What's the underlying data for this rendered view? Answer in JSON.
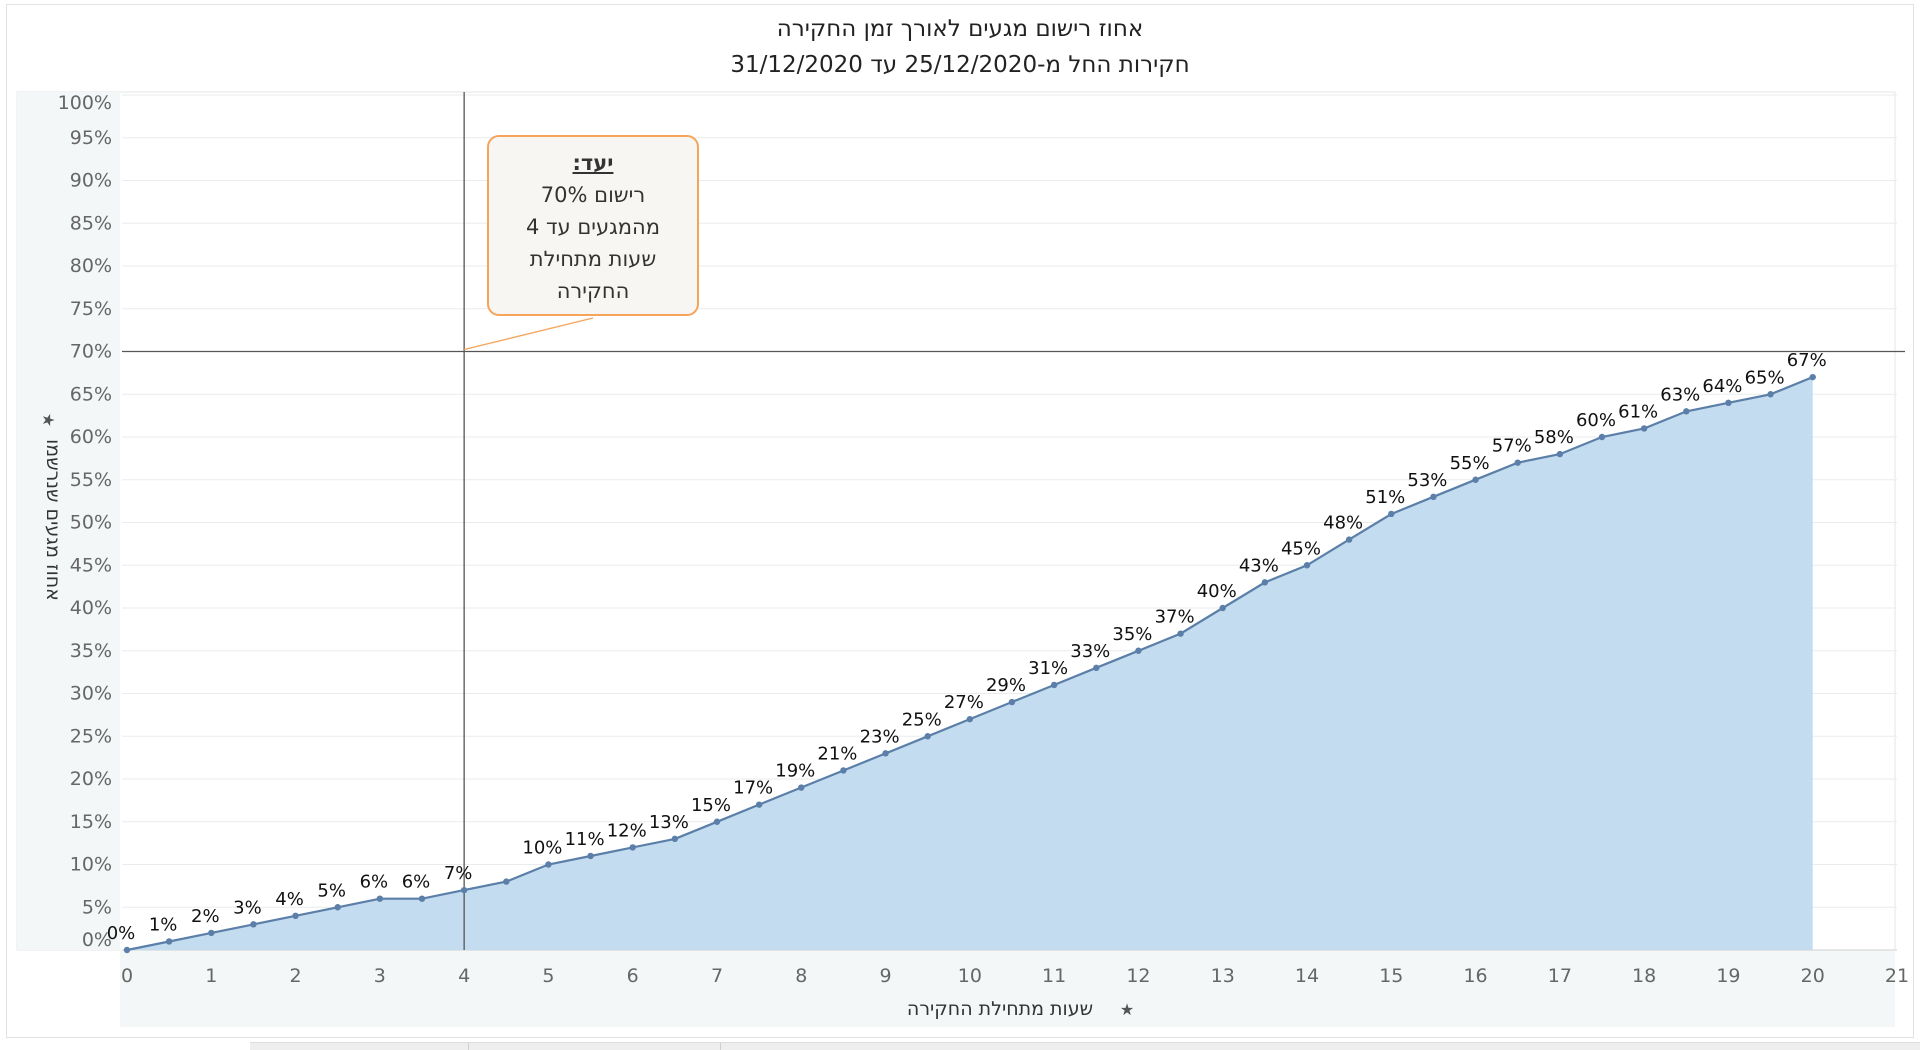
{
  "title": "אחוז רישום מגעים לאורך זמן החקירה",
  "subtitle": "חקירות החל מ-25/12/2020 עד 31/12/2020",
  "annotation": {
    "title": "יעד:",
    "lines": [
      "רישום 70%",
      "מהמגעים עד 4",
      "שעות מתחילת",
      "החקירה"
    ]
  },
  "colors": {
    "area_fill": "#c4dcef",
    "line": "#5b7fa8",
    "reference_line": "#555555",
    "callout_border": "#f5a45a",
    "axis_panel": "#f3f7f8"
  },
  "icons": {
    "axis_label_icon": "pin-icon"
  },
  "chart_data": {
    "type": "area",
    "xlabel": "שעות מתחילת החקירה",
    "ylabel": "אחוז מגעים שנרשמו",
    "xlim": [
      0,
      21
    ],
    "ylim": [
      0,
      100
    ],
    "x_ticks": [
      0,
      1,
      2,
      3,
      4,
      5,
      6,
      7,
      8,
      9,
      10,
      11,
      12,
      13,
      14,
      15,
      16,
      17,
      18,
      19,
      20,
      21
    ],
    "y_ticks": [
      "0%",
      "5%",
      "10%",
      "15%",
      "20%",
      "25%",
      "30%",
      "35%",
      "40%",
      "45%",
      "50%",
      "55%",
      "60%",
      "65%",
      "70%",
      "75%",
      "80%",
      "85%",
      "90%",
      "95%",
      "100%"
    ],
    "grid": true,
    "reference_lines": {
      "x": 4,
      "y": 70
    },
    "series": [
      {
        "x": [
          0,
          0.5,
          1,
          1.5,
          2,
          2.5,
          3,
          3.5,
          4,
          4.5,
          5,
          5.5,
          6,
          6.5,
          7,
          7.5,
          8,
          8.5,
          9,
          9.5,
          10,
          10.5,
          11,
          11.5,
          12,
          12.5,
          13,
          13.5,
          14,
          14.5,
          15,
          15.5,
          16,
          16.5,
          17,
          17.5,
          18,
          18.5,
          19,
          19.5,
          20
        ],
        "values": [
          0,
          1,
          2,
          3,
          4,
          5,
          6,
          6,
          7,
          8,
          10,
          11,
          12,
          13,
          15,
          17,
          19,
          21,
          23,
          25,
          27,
          29,
          31,
          33,
          35,
          37,
          40,
          43,
          45,
          48,
          51,
          53,
          55,
          57,
          58,
          60,
          61,
          63,
          64,
          65,
          67
        ],
        "labels": [
          "0%",
          "1%",
          "2%",
          "3%",
          "4%",
          "5%",
          "6%",
          "6%",
          "7%",
          "",
          "10%",
          "11%",
          "12%",
          "13%",
          "15%",
          "17%",
          "19%",
          "21%",
          "23%",
          "25%",
          "27%",
          "29%",
          "31%",
          "33%",
          "35%",
          "37%",
          "40%",
          "43%",
          "45%",
          "48%",
          "51%",
          "53%",
          "55%",
          "57%",
          "58%",
          "60%",
          "61%",
          "63%",
          "64%",
          "65%",
          "67%"
        ]
      }
    ]
  }
}
